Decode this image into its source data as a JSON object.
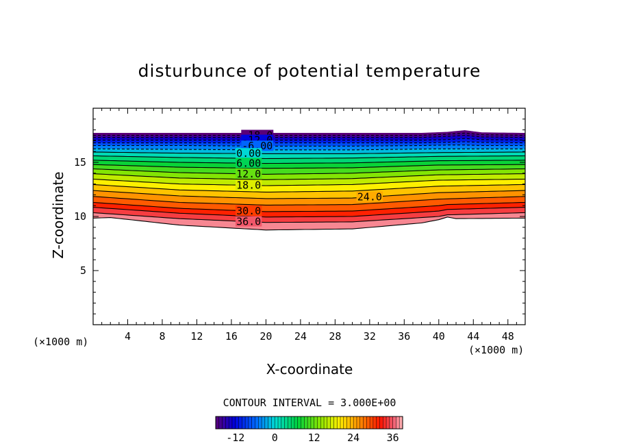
{
  "chart_data": {
    "type": "contour",
    "title": "disturbunce of potential temperature",
    "xlabel": "X-coordinate",
    "ylabel": "Z-coordinate",
    "x_unit": "(×1000 m)",
    "z_unit": "(×1000 m)",
    "xlim": [
      0,
      50
    ],
    "ylim": [
      0,
      20
    ],
    "x_ticks": [
      4,
      8,
      12,
      16,
      20,
      24,
      28,
      32,
      36,
      40,
      44,
      48
    ],
    "y_ticks": [
      5,
      10,
      15
    ],
    "contour_interval_text": "CONTOUR INTERVAL = 3.000E+00",
    "contour_interval": 3.0,
    "value_range": [
      -18,
      39
    ],
    "top_boundary_z": 17.7,
    "contours": [
      {
        "value": -18,
        "label": "-18.0",
        "label_x": 19,
        "dashed": true,
        "x": [
          0,
          10,
          20,
          30,
          38,
          41,
          43,
          45,
          50
        ],
        "z": [
          17.5,
          17.5,
          17.5,
          17.5,
          17.5,
          17.6,
          17.7,
          17.55,
          17.5
        ]
      },
      {
        "value": -15,
        "label": "",
        "dashed": true,
        "x": [
          0,
          10,
          20,
          30,
          38,
          41,
          43,
          45,
          50
        ],
        "z": [
          17.3,
          17.3,
          17.3,
          17.3,
          17.3,
          17.4,
          17.5,
          17.35,
          17.3
        ]
      },
      {
        "value": -12,
        "label": "-12.0",
        "label_x": 19,
        "dashed": true,
        "x": [
          0,
          10,
          20,
          30,
          38,
          41,
          43,
          45,
          50
        ],
        "z": [
          17.05,
          17.05,
          17.05,
          17.05,
          17.05,
          17.1,
          17.2,
          17.1,
          17.05
        ]
      },
      {
        "value": -9,
        "label": "",
        "dashed": true,
        "x": [
          0,
          10,
          20,
          30,
          38,
          41,
          43,
          45,
          50
        ],
        "z": [
          16.8,
          16.8,
          16.8,
          16.8,
          16.8,
          16.85,
          16.9,
          16.85,
          16.8
        ]
      },
      {
        "value": -6,
        "label": "-6.00",
        "label_x": 19,
        "dashed": true,
        "x": [
          0,
          10,
          20,
          30,
          38,
          41,
          43,
          45,
          50
        ],
        "z": [
          16.55,
          16.55,
          16.5,
          16.5,
          16.55,
          16.6,
          16.6,
          16.55,
          16.55
        ]
      },
      {
        "value": -3,
        "label": "",
        "dashed": true,
        "x": [
          0,
          10,
          20,
          30,
          40,
          50
        ],
        "z": [
          16.25,
          16.2,
          16.15,
          16.15,
          16.25,
          16.25
        ]
      },
      {
        "value": 0,
        "label": "0.00",
        "label_x": 18,
        "dashed": false,
        "x": [
          0,
          10,
          20,
          30,
          40,
          50
        ],
        "z": [
          15.95,
          15.85,
          15.8,
          15.8,
          15.9,
          15.95
        ]
      },
      {
        "value": 3,
        "label": "",
        "dashed": false,
        "x": [
          0,
          10,
          20,
          30,
          40,
          50
        ],
        "z": [
          15.6,
          15.45,
          15.35,
          15.4,
          15.55,
          15.6
        ]
      },
      {
        "value": 6,
        "label": "6.00",
        "label_x": 18,
        "dashed": false,
        "x": [
          0,
          10,
          20,
          30,
          40,
          50
        ],
        "z": [
          15.2,
          15.0,
          14.9,
          14.95,
          15.15,
          15.2
        ]
      },
      {
        "value": 9,
        "label": "",
        "dashed": false,
        "x": [
          0,
          10,
          20,
          30,
          40,
          50
        ],
        "z": [
          14.8,
          14.55,
          14.45,
          14.5,
          14.75,
          14.8
        ]
      },
      {
        "value": 12,
        "label": "12.0",
        "label_x": 18,
        "dashed": false,
        "x": [
          0,
          10,
          20,
          30,
          40,
          50
        ],
        "z": [
          14.4,
          14.05,
          13.9,
          14.0,
          14.3,
          14.4
        ]
      },
      {
        "value": 15,
        "label": "",
        "dashed": false,
        "x": [
          0,
          10,
          20,
          30,
          40,
          50
        ],
        "z": [
          13.95,
          13.55,
          13.4,
          13.5,
          13.85,
          13.95
        ]
      },
      {
        "value": 18,
        "label": "18.0",
        "label_x": 18,
        "dashed": false,
        "x": [
          0,
          10,
          20,
          30,
          40,
          50
        ],
        "z": [
          13.45,
          13.0,
          12.85,
          12.95,
          13.35,
          13.45
        ]
      },
      {
        "value": 21,
        "label": "",
        "dashed": false,
        "x": [
          0,
          10,
          20,
          30,
          40,
          50
        ],
        "z": [
          12.95,
          12.45,
          12.25,
          12.35,
          12.8,
          12.95
        ]
      },
      {
        "value": 24,
        "label": "24.0",
        "label_x": 32,
        "dashed": false,
        "x": [
          0,
          10,
          20,
          30,
          40,
          50
        ],
        "z": [
          12.4,
          11.9,
          11.65,
          11.7,
          12.2,
          12.4
        ]
      },
      {
        "value": 27,
        "label": "",
        "dashed": false,
        "x": [
          0,
          10,
          20,
          30,
          40,
          50
        ],
        "z": [
          11.85,
          11.3,
          11.05,
          11.1,
          11.6,
          11.85
        ]
      },
      {
        "value": 30,
        "label": "30.0",
        "label_x": 18,
        "dashed": false,
        "x": [
          0,
          10,
          20,
          30,
          40,
          41,
          50
        ],
        "z": [
          11.3,
          10.75,
          10.45,
          10.5,
          11.0,
          11.1,
          11.3
        ]
      },
      {
        "value": 33,
        "label": "",
        "dashed": false,
        "x": [
          0,
          10,
          20,
          30,
          40,
          41,
          50
        ],
        "z": [
          10.85,
          10.3,
          9.95,
          10.0,
          10.5,
          10.65,
          10.85
        ]
      },
      {
        "value": 36,
        "label": "36.0",
        "label_x": 18,
        "dashed": false,
        "x": [
          0,
          10,
          20,
          30,
          40,
          41,
          50
        ],
        "z": [
          10.35,
          9.8,
          9.45,
          9.5,
          10.0,
          10.15,
          10.35
        ]
      },
      {
        "value": 39,
        "label": "",
        "dashed": false,
        "x": [
          0,
          2,
          10,
          20,
          30,
          38,
          40,
          41,
          42,
          50
        ],
        "z": [
          9.85,
          9.9,
          9.2,
          8.75,
          8.85,
          9.4,
          9.7,
          9.95,
          9.8,
          9.85
        ]
      }
    ],
    "colorbar": {
      "tick_labels": [
        "-12",
        "0",
        "12",
        "24",
        "36"
      ],
      "tick_values": [
        -12,
        0,
        12,
        24,
        36
      ],
      "range": [
        -18,
        39
      ]
    },
    "colors": {
      "frame": "#000000",
      "background": "#ffffff"
    }
  }
}
